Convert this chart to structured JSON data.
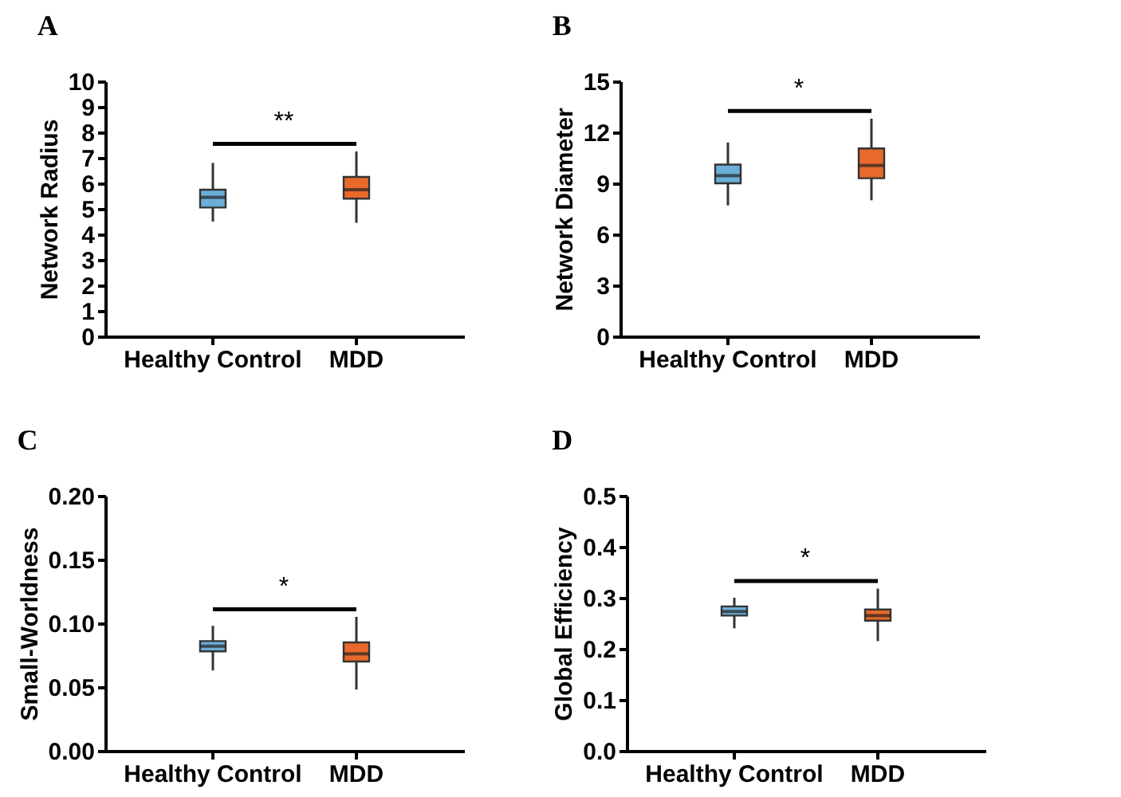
{
  "chart_data": [
    {
      "type": "box",
      "title": "A",
      "ylabel": "Network Radius",
      "categories": [
        "Healthy Control",
        "MDD"
      ],
      "colors": [
        "#6baed6",
        "#e8692a"
      ],
      "ylim": [
        0,
        10
      ],
      "yticks": [
        0,
        1,
        2,
        3,
        4,
        5,
        6,
        7,
        8,
        9,
        10
      ],
      "annotations": [
        "**"
      ],
      "boxes": [
        {
          "low": 4.5,
          "q1": 5.05,
          "median": 5.45,
          "q3": 5.75,
          "high": 6.8
        },
        {
          "low": 4.45,
          "q1": 5.4,
          "median": 5.75,
          "q3": 6.25,
          "high": 7.25
        }
      ]
    },
    {
      "type": "box",
      "title": "B",
      "ylabel": "Network Diameter",
      "categories": [
        "Healthy Control",
        "MDD"
      ],
      "colors": [
        "#6baed6",
        "#e8692a"
      ],
      "ylim": [
        0,
        15
      ],
      "yticks": [
        0,
        3,
        6,
        9,
        12,
        15
      ],
      "annotations": [
        "*"
      ],
      "boxes": [
        {
          "low": 7.7,
          "q1": 9.0,
          "median": 9.45,
          "q3": 10.1,
          "high": 11.4
        },
        {
          "low": 8.0,
          "q1": 9.3,
          "median": 10.05,
          "q3": 11.05,
          "high": 12.8
        }
      ]
    },
    {
      "type": "box",
      "title": "C",
      "ylabel": "Small-Worldness",
      "categories": [
        "Healthy Control",
        "MDD"
      ],
      "colors": [
        "#6baed6",
        "#e8692a"
      ],
      "ylim": [
        0,
        0.2
      ],
      "yticks": [
        {
          "value": 0,
          "label": "0.00"
        },
        {
          "value": 0.05,
          "label": "0.05"
        },
        {
          "value": 0.1,
          "label": "0.10"
        },
        {
          "value": 0.15,
          "label": "0.15"
        },
        {
          "value": 0.2,
          "label": "0.20"
        }
      ],
      "annotations": [
        "*"
      ],
      "boxes": [
        {
          "low": 0.063,
          "q1": 0.078,
          "median": 0.082,
          "q3": 0.086,
          "high": 0.098
        },
        {
          "low": 0.048,
          "q1": 0.07,
          "median": 0.076,
          "q3": 0.085,
          "high": 0.105
        }
      ]
    },
    {
      "type": "box",
      "title": "D",
      "ylabel": "Global Efficiency",
      "categories": [
        "Healthy Control",
        "MDD"
      ],
      "colors": [
        "#6baed6",
        "#e8692a"
      ],
      "ylim": [
        0,
        0.5
      ],
      "yticks": [
        {
          "value": 0,
          "label": "0.0"
        },
        {
          "value": 0.1,
          "label": "0.1"
        },
        {
          "value": 0.2,
          "label": "0.2"
        },
        {
          "value": 0.3,
          "label": "0.3"
        },
        {
          "value": 0.4,
          "label": "0.4"
        },
        {
          "value": 0.5,
          "label": "0.5"
        }
      ],
      "annotations": [
        "*"
      ],
      "boxes": [
        {
          "low": 0.24,
          "q1": 0.265,
          "median": 0.273,
          "q3": 0.283,
          "high": 0.3
        },
        {
          "low": 0.215,
          "q1": 0.255,
          "median": 0.265,
          "q3": 0.277,
          "high": 0.318
        }
      ]
    }
  ]
}
